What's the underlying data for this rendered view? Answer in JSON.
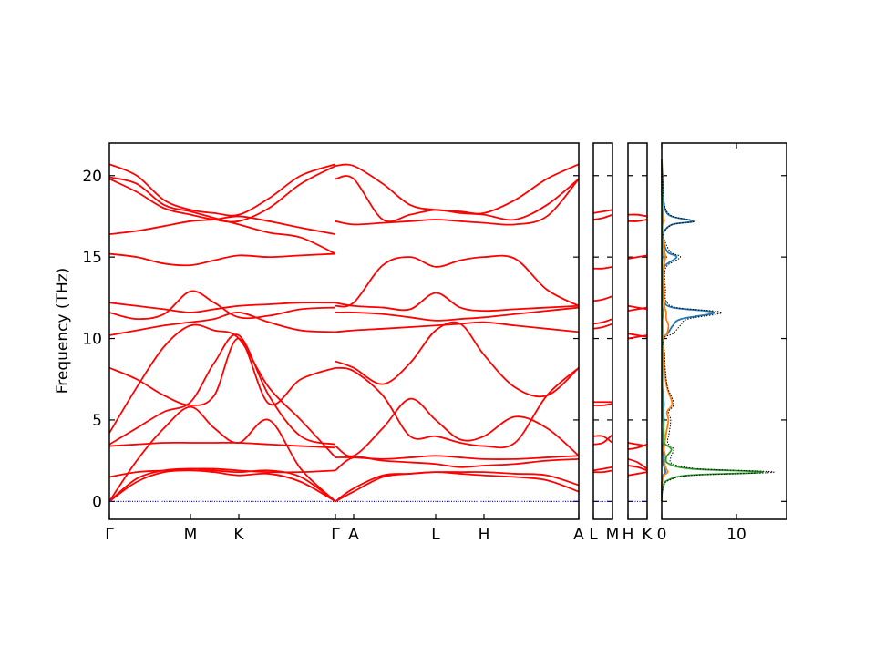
{
  "chart_data": [
    {
      "type": "line",
      "ylabel": "Frequency (THz)",
      "color": "#ff0000",
      "ylim": [
        -1.1,
        22
      ],
      "yticks": [
        0,
        5,
        10,
        15,
        20
      ],
      "zero_line": {
        "value": 0,
        "color": "#0000ff"
      },
      "xlim": [
        0,
        5.15
      ],
      "xticks": [
        {
          "value": 0,
          "label": "Γ"
        },
        {
          "value": 0.89,
          "label": "M"
        },
        {
          "value": 1.42,
          "label": "K"
        },
        {
          "value": 2.48,
          "label": "Γ"
        }
      ],
      "x": [
        0,
        0.3,
        0.6,
        0.89,
        1.15,
        1.42,
        1.75,
        2.1,
        2.48
      ],
      "series": [
        {
          "values": [
            0,
            1.2,
            1.8,
            1.9,
            1.8,
            1.6,
            1.7,
            1.2,
            0
          ]
        },
        {
          "values": [
            0,
            1.4,
            1.9,
            2.0,
            1.9,
            1.8,
            1.9,
            1.5,
            0
          ]
        },
        {
          "values": [
            0,
            2.5,
            4.5,
            5.8,
            4.5,
            3.6,
            5.0,
            2.0,
            0
          ]
        },
        {
          "values": [
            1.5,
            1.8,
            1.9,
            2.0,
            2.0,
            1.9,
            1.8,
            1.8,
            1.9
          ]
        },
        {
          "values": [
            3.4,
            3.5,
            3.6,
            3.6,
            3.6,
            3.6,
            3.5,
            3.4,
            3.3
          ]
        },
        {
          "values": [
            3.5,
            4.5,
            5.5,
            6.1,
            8.5,
            10.2,
            6.5,
            4.0,
            3.5
          ]
        },
        {
          "values": [
            4.2,
            7.0,
            9.5,
            10.8,
            10.5,
            10.0,
            7.0,
            5.0,
            2.7
          ]
        },
        {
          "values": [
            8.2,
            7.5,
            6.5,
            5.9,
            6.5,
            10.0,
            6.0,
            7.5,
            8.2
          ]
        },
        {
          "values": [
            10.2,
            10.5,
            10.8,
            11.0,
            11.2,
            11.6,
            11.0,
            10.5,
            10.4
          ]
        },
        {
          "values": [
            11.6,
            11.2,
            11.5,
            12.9,
            12.2,
            11.3,
            11.4,
            11.8,
            11.9
          ]
        },
        {
          "values": [
            12.2,
            12.0,
            11.8,
            11.6,
            11.8,
            12.0,
            12.1,
            12.2,
            12.2
          ]
        },
        {
          "values": [
            15.2,
            15.0,
            14.6,
            14.5,
            14.8,
            15.1,
            15.0,
            15.1,
            15.2
          ]
        },
        {
          "values": [
            16.4,
            16.6,
            16.9,
            17.2,
            17.3,
            17.5,
            17.2,
            16.8,
            16.4
          ]
        },
        {
          "values": [
            19.8,
            19.0,
            18.0,
            17.6,
            17.3,
            17.2,
            18.0,
            19.5,
            20.6
          ]
        },
        {
          "values": [
            20.7,
            20.0,
            18.5,
            17.9,
            17.7,
            17.6,
            18.6,
            20.0,
            20.7
          ]
        },
        {
          "values": [
            19.9,
            19.5,
            18.2,
            17.8,
            17.4,
            17.0,
            16.5,
            16.2,
            15.2
          ]
        }
      ]
    },
    {
      "type": "line",
      "color": "#ff0000",
      "ylim": [
        -1.1,
        22
      ],
      "yticks": [
        0,
        5,
        10,
        15,
        20
      ],
      "zero_line": {
        "value": 0,
        "color": "#0000ff"
      },
      "xlim": [
        0,
        5.15
      ],
      "xticks": [
        {
          "value": 2.68,
          "label": "A"
        },
        {
          "value": 3.58,
          "label": "L"
        },
        {
          "value": 4.11,
          "label": "H"
        },
        {
          "value": 5.15,
          "label": "A"
        }
      ],
      "x": [
        2.48,
        2.68,
        3.0,
        3.3,
        3.58,
        3.85,
        4.11,
        4.45,
        4.8,
        5.15
      ],
      "series": [
        {
          "values": [
            0,
            0.6,
            1.5,
            1.7,
            1.8,
            1.7,
            1.6,
            1.5,
            1.3,
            0.6
          ]
        },
        {
          "values": [
            0,
            0.8,
            1.6,
            1.7,
            1.8,
            1.8,
            1.8,
            1.7,
            1.6,
            1.0
          ]
        },
        {
          "values": [
            1.9,
            2.7,
            2.5,
            2.4,
            2.3,
            2.1,
            2.2,
            2.3,
            2.5,
            2.6
          ]
        },
        {
          "values": [
            2.7,
            2.7,
            2.6,
            2.7,
            2.8,
            2.7,
            2.6,
            2.6,
            2.7,
            2.8
          ]
        },
        {
          "values": [
            3.4,
            2.8,
            4.5,
            6.3,
            5.0,
            3.8,
            4.0,
            5.2,
            4.5,
            2.8
          ]
        },
        {
          "values": [
            8.2,
            8.0,
            6.5,
            4.0,
            4.0,
            3.6,
            3.4,
            3.6,
            6.5,
            8.2
          ]
        },
        {
          "values": [
            8.6,
            8.2,
            7.2,
            8.5,
            10.5,
            10.9,
            9.0,
            7.0,
            6.5,
            8.2
          ]
        },
        {
          "values": [
            10.4,
            10.5,
            10.6,
            10.7,
            10.8,
            10.9,
            11.0,
            10.8,
            10.6,
            10.4
          ]
        },
        {
          "values": [
            11.6,
            11.6,
            11.5,
            11.3,
            11.1,
            11.2,
            11.3,
            11.5,
            11.7,
            11.9
          ]
        },
        {
          "values": [
            12.2,
            12.0,
            11.9,
            11.8,
            12.8,
            11.9,
            11.7,
            11.8,
            11.9,
            12.0
          ]
        },
        {
          "values": [
            12.0,
            12.2,
            14.5,
            15.0,
            14.4,
            14.8,
            15.0,
            14.9,
            13.0,
            12.0
          ]
        },
        {
          "values": [
            17.2,
            17.0,
            17.1,
            17.2,
            17.3,
            17.2,
            17.1,
            17.0,
            17.5,
            19.8
          ]
        },
        {
          "values": [
            19.8,
            19.8,
            17.3,
            17.6,
            17.9,
            17.7,
            17.6,
            17.3,
            18.2,
            19.8
          ]
        },
        {
          "values": [
            20.6,
            20.6,
            19.5,
            18.2,
            17.9,
            17.8,
            17.7,
            18.5,
            19.8,
            20.7
          ]
        }
      ]
    },
    {
      "type": "line",
      "color": "#ff0000",
      "ylim": [
        -1.1,
        22
      ],
      "yticks": [
        0,
        5,
        10,
        15,
        20
      ],
      "zero_line": {
        "value": 0,
        "color": "#0000ff"
      },
      "xlim": [
        0,
        0.21
      ],
      "xticks": [
        {
          "value": 0,
          "label": "L"
        },
        {
          "value": 0.21,
          "label": "M"
        }
      ],
      "x": [
        0,
        0.105,
        0.21
      ],
      "series": [
        {
          "values": [
            1.8,
            1.8,
            1.9
          ]
        },
        {
          "values": [
            1.9,
            2.0,
            2.1
          ]
        },
        {
          "values": [
            3.5,
            3.6,
            4.1
          ]
        },
        {
          "values": [
            4.0,
            4.0,
            3.6
          ]
        },
        {
          "values": [
            5.9,
            5.9,
            6.0
          ]
        },
        {
          "values": [
            6.1,
            6.1,
            6.1
          ]
        },
        {
          "values": [
            10.6,
            10.7,
            10.9
          ]
        },
        {
          "values": [
            10.9,
            11.0,
            11.2
          ]
        },
        {
          "values": [
            12.3,
            12.4,
            12.6
          ]
        },
        {
          "values": [
            14.3,
            14.3,
            14.4
          ]
        },
        {
          "values": [
            17.3,
            17.4,
            17.6
          ]
        },
        {
          "values": [
            17.7,
            17.8,
            17.9
          ]
        }
      ]
    },
    {
      "type": "line",
      "color": "#ff0000",
      "ylim": [
        -1.1,
        22
      ],
      "yticks": [
        0,
        5,
        10,
        15,
        20
      ],
      "zero_line": {
        "value": 0,
        "color": "#0000ff"
      },
      "xlim": [
        0,
        0.21
      ],
      "xticks": [
        {
          "value": 0,
          "label": "H"
        },
        {
          "value": 0.21,
          "label": "K"
        }
      ],
      "x": [
        0,
        0.105,
        0.21
      ],
      "series": [
        {
          "values": [
            1.6,
            1.7,
            1.8
          ]
        },
        {
          "values": [
            2.2,
            2.1,
            1.9
          ]
        },
        {
          "values": [
            2.6,
            2.4,
            2.0
          ]
        },
        {
          "values": [
            3.2,
            3.3,
            3.5
          ]
        },
        {
          "values": [
            3.6,
            3.5,
            3.4
          ]
        },
        {
          "values": [
            10.0,
            10.1,
            10.2
          ]
        },
        {
          "values": [
            10.3,
            10.2,
            10.1
          ]
        },
        {
          "values": [
            11.7,
            11.8,
            11.9
          ]
        },
        {
          "values": [
            12.0,
            11.9,
            11.8
          ]
        },
        {
          "values": [
            14.9,
            15.0,
            15.1
          ]
        },
        {
          "values": [
            17.2,
            17.2,
            17.3
          ]
        },
        {
          "values": [
            17.6,
            17.6,
            17.5
          ]
        }
      ]
    },
    {
      "type": "dos",
      "ylim": [
        -1.1,
        22
      ],
      "yticks": [
        0,
        5,
        10,
        15,
        20
      ],
      "xlim": [
        0,
        16.7
      ],
      "xticks": [
        0,
        10
      ],
      "y": [
        0,
        0.5,
        1,
        1.3,
        1.6,
        1.8,
        2.0,
        2.3,
        2.7,
        3.2,
        3.6,
        4.2,
        5,
        5.5,
        6,
        7,
        8,
        9,
        10,
        10.3,
        10.8,
        11.2,
        11.6,
        11.9,
        12.3,
        13,
        14,
        14.5,
        15,
        15.3,
        16,
        16.5,
        17,
        17.2,
        17.5,
        18,
        19,
        20,
        21
      ],
      "series": [
        {
          "color": "#1f77b4",
          "values": [
            0,
            0,
            0,
            0.05,
            0.2,
            0.5,
            0.4,
            0.2,
            0.2,
            0.1,
            0.2,
            0.2,
            0.3,
            0.2,
            0.3,
            0.1,
            0.1,
            0.1,
            0.1,
            0.8,
            1.5,
            2.6,
            7,
            1.5,
            0.3,
            0.2,
            0.2,
            0.5,
            2,
            0.8,
            0.2,
            0.2,
            1.4,
            4.2,
            1.3,
            0.4,
            0.2,
            0.1,
            0
          ]
        },
        {
          "color": "#ff7f0e",
          "values": [
            0,
            0.01,
            0.05,
            0.1,
            0.3,
            0.8,
            0.6,
            0.4,
            0.5,
            0.3,
            0.4,
            0.6,
            0.9,
            0.7,
            1.4,
            0.7,
            0.4,
            0.3,
            0.2,
            0.7,
            0.9,
            0.6,
            0.6,
            0.4,
            0.3,
            0.3,
            0.2,
            0.3,
            0.5,
            0.4,
            0.2,
            0.1,
            0.1,
            0.3,
            0.2,
            0.1,
            0.05,
            0,
            0
          ]
        },
        {
          "color": "#2ca02c",
          "values": [
            0,
            0.04,
            0.25,
            0.8,
            3.5,
            13.5,
            4,
            1,
            0.6,
            1.3,
            0.3,
            0.3,
            0.2,
            0.1,
            0.1,
            0.05,
            0.05,
            0.05,
            0.05,
            0.1,
            0.1,
            0.1,
            0.2,
            0.1,
            0.05,
            0.05,
            0.05,
            0.05,
            0.1,
            0.1,
            0.05,
            0.05,
            0.05,
            0.1,
            0.05,
            0.05,
            0,
            0,
            0
          ]
        },
        {
          "color": "#000000",
          "style": "dotted",
          "values": [
            0,
            0.05,
            0.3,
            1,
            4,
            15,
            5,
            1.5,
            1.2,
            1.6,
            0.8,
            1,
            1.2,
            0.9,
            1.6,
            0.8,
            0.5,
            0.4,
            0.3,
            1.5,
            2.5,
            3.5,
            8,
            2,
            0.6,
            0.5,
            0.4,
            0.8,
            2.5,
            1.2,
            0.4,
            0.3,
            1.5,
            4.5,
            1.5,
            0.5,
            0.2,
            0.1,
            0
          ]
        }
      ]
    }
  ]
}
